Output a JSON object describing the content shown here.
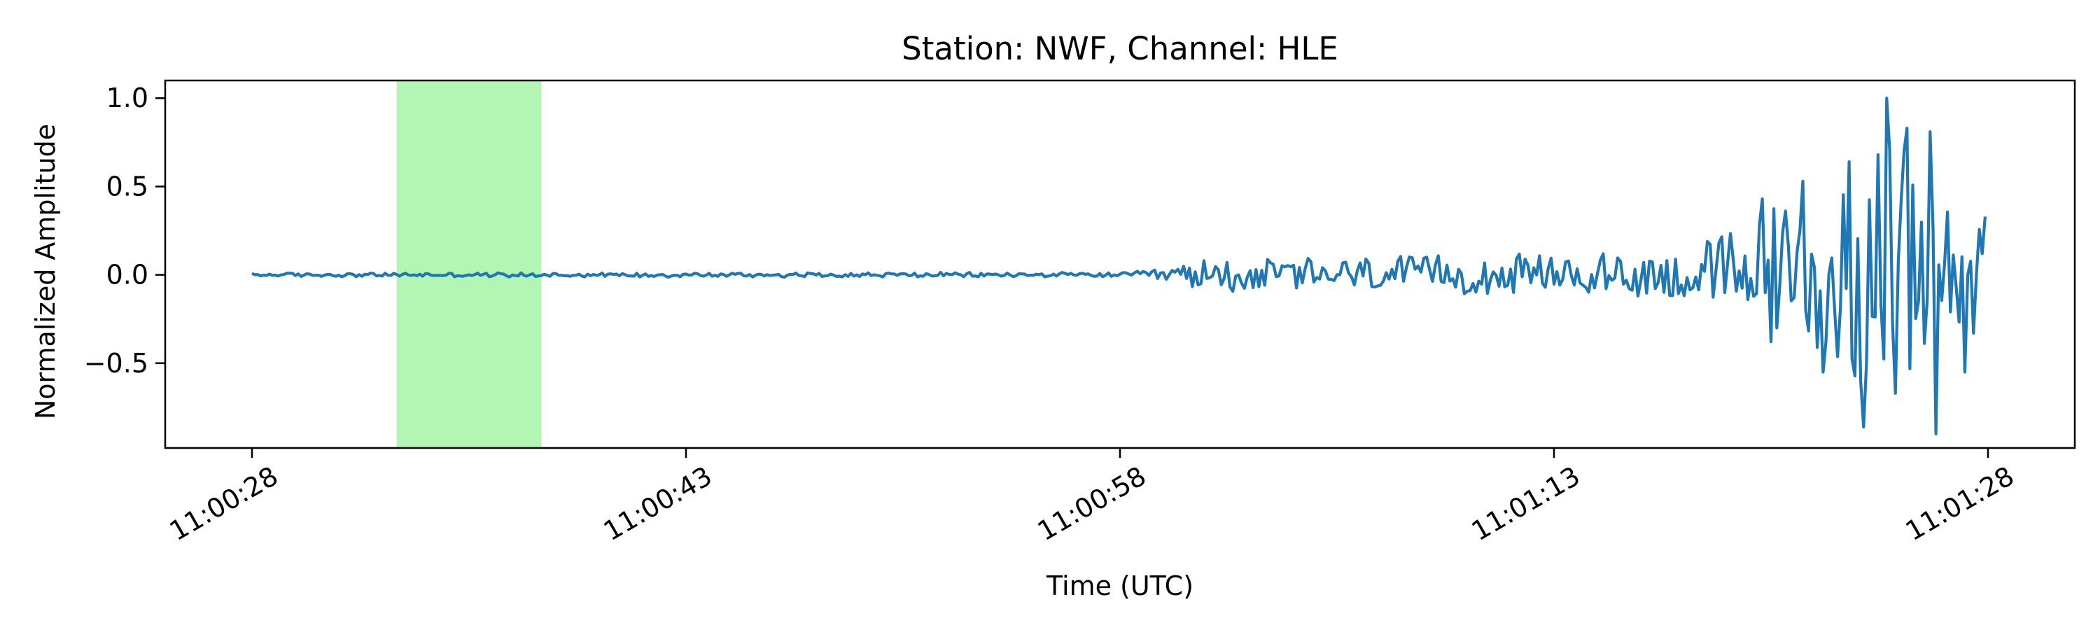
{
  "chart_data": {
    "type": "line",
    "title": "Station: NWF, Channel: HLE",
    "xlabel": "Time (UTC)",
    "ylabel": "Normalized Amplitude",
    "x_unit": "seconds after 11:00:28",
    "x_range": [
      0,
      60
    ],
    "xlim": [
      -3,
      63
    ],
    "ylim": [
      -0.98,
      1.1
    ],
    "x_tick_labels": [
      "11:00:28",
      "11:00:43",
      "11:00:58",
      "11:01:13",
      "11:01:28"
    ],
    "x_tick_values": [
      0,
      15,
      30,
      45,
      60
    ],
    "y_tick_labels": [
      "1.0",
      "0.5",
      "0.0",
      "−0.5"
    ],
    "y_tick_values": [
      1.0,
      0.5,
      0.0,
      -0.5
    ],
    "highlight_span": {
      "x_start": 5,
      "x_end": 10,
      "color": "#b3f5b3"
    },
    "series": [
      {
        "color": "#1f77b4",
        "envelope": [
          {
            "x": 0,
            "amp": 0.012
          },
          {
            "x": 10,
            "amp": 0.014
          },
          {
            "x": 20,
            "amp": 0.016
          },
          {
            "x": 30,
            "amp": 0.014
          },
          {
            "x": 31.5,
            "amp": 0.04
          },
          {
            "x": 33,
            "amp": 0.11
          },
          {
            "x": 40,
            "amp": 0.12
          },
          {
            "x": 46,
            "amp": 0.13
          },
          {
            "x": 50,
            "amp": 0.2
          },
          {
            "x": 52.5,
            "amp": 0.45
          },
          {
            "x": 54.5,
            "amp": 0.62
          },
          {
            "x": 55.8,
            "amp": 1.0
          },
          {
            "x": 57,
            "amp": 0.9
          },
          {
            "x": 58.5,
            "amp": 0.6
          },
          {
            "x": 60,
            "amp": 0.3
          }
        ],
        "peaks": [
          {
            "x": 52.2,
            "y": 0.43
          },
          {
            "x": 52.7,
            "y": -0.3
          },
          {
            "x": 53.6,
            "y": 0.53
          },
          {
            "x": 54.3,
            "y": -0.55
          },
          {
            "x": 55.2,
            "y": 0.64
          },
          {
            "x": 55.6,
            "y": -0.6
          },
          {
            "x": 56.5,
            "y": 1.0
          },
          {
            "x": 56.8,
            "y": -0.67
          },
          {
            "x": 57.2,
            "y": 0.83
          },
          {
            "x": 58.0,
            "y": 0.81
          },
          {
            "x": 58.2,
            "y": -0.9
          },
          {
            "x": 59.2,
            "y": -0.55
          },
          {
            "x": 59.8,
            "y": 0.3
          }
        ]
      }
    ]
  }
}
